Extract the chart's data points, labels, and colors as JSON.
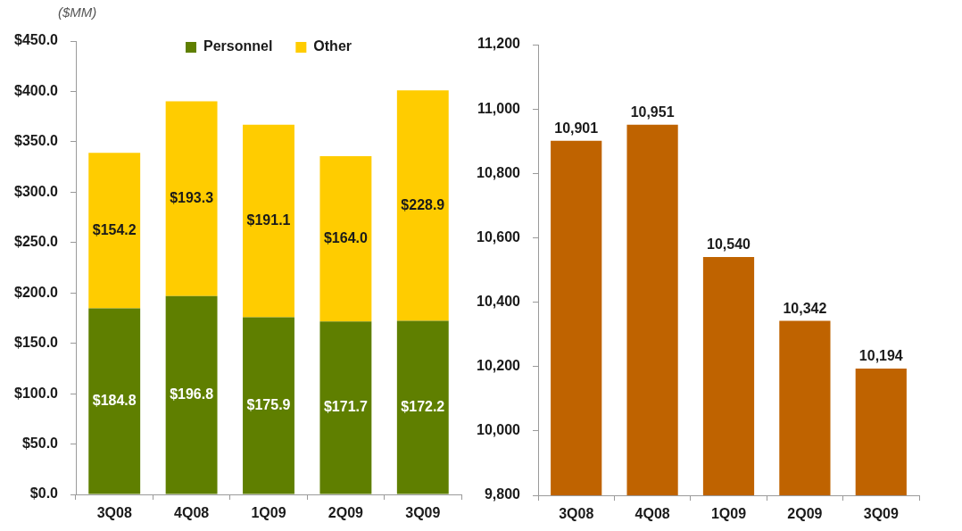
{
  "chart_data": [
    {
      "type": "bar",
      "stacked": true,
      "ylabel": "($MM)",
      "categories": [
        "3Q08",
        "4Q08",
        "1Q09",
        "2Q09",
        "3Q09"
      ],
      "series": [
        {
          "name": "Personnel",
          "color": "#5f7f00",
          "values": [
            184.8,
            196.8,
            175.9,
            171.7,
            172.2
          ],
          "value_labels": [
            "$184.8",
            "$196.8",
            "$175.9",
            "$171.7",
            "$172.2"
          ]
        },
        {
          "name": "Other",
          "color": "#ffcc00",
          "values": [
            154.2,
            193.3,
            191.1,
            164.0,
            228.9
          ],
          "value_labels": [
            "$154.2",
            "$193.3",
            "$191.1",
            "$164.0",
            "$228.9"
          ]
        }
      ],
      "ylim": [
        0,
        450
      ],
      "yticks": [
        {
          "value": 0,
          "label": "$0.0"
        },
        {
          "value": 50,
          "label": "$50.0"
        },
        {
          "value": 100,
          "label": "$100.0"
        },
        {
          "value": 150,
          "label": "$150.0"
        },
        {
          "value": 200,
          "label": "$200.0"
        },
        {
          "value": 250,
          "label": "$250.0"
        },
        {
          "value": 300,
          "label": "$300.0"
        },
        {
          "value": 350,
          "label": "$350.0"
        },
        {
          "value": 400,
          "label": "$400.0"
        },
        {
          "value": 450,
          "label": "$450.0"
        }
      ],
      "legend": "top"
    },
    {
      "type": "bar",
      "categories": [
        "3Q08",
        "4Q08",
        "1Q09",
        "2Q09",
        "3Q09"
      ],
      "color": "#bf6300",
      "values": [
        10901,
        10951,
        10540,
        10342,
        10194
      ],
      "value_labels": [
        "10,901",
        "10,951",
        "10,540",
        "10,342",
        "10,194"
      ],
      "ylim": [
        9800,
        11200
      ],
      "yticks": [
        {
          "value": 9800,
          "label": "9,800"
        },
        {
          "value": 10000,
          "label": "10,000"
        },
        {
          "value": 10200,
          "label": "10,200"
        },
        {
          "value": 10400,
          "label": "10,400"
        },
        {
          "value": 10600,
          "label": "10,600"
        },
        {
          "value": 10800,
          "label": "10,800"
        },
        {
          "value": 11000,
          "label": "11,000"
        },
        {
          "value": 11200,
          "label": "11,200"
        }
      ]
    }
  ]
}
